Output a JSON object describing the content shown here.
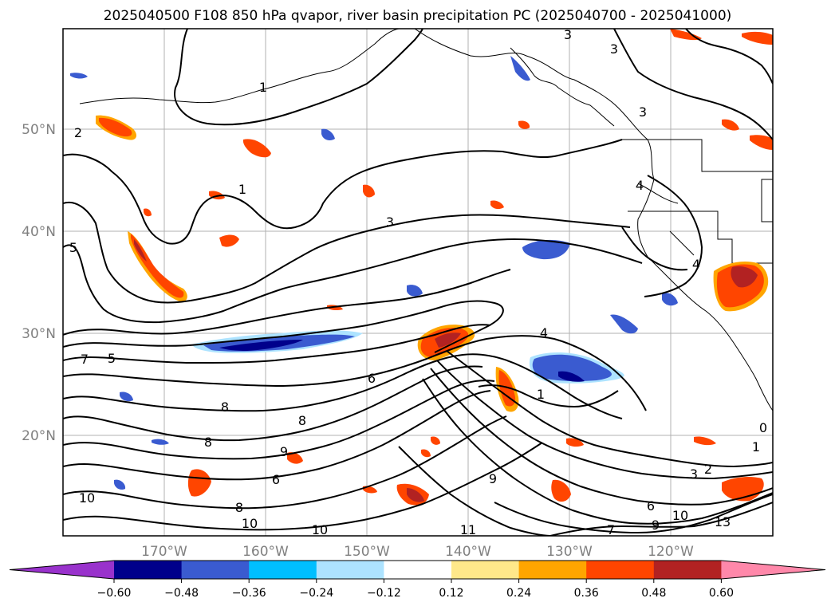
{
  "title": "2025040500 F108 850 hPa qvapor, river basin precipitation PC (2025040700 - 2025041000)",
  "map": {
    "lat_labels": [
      "50°N",
      "40°N",
      "30°N",
      "20°N"
    ],
    "lon_labels": [
      "170°W",
      "160°W",
      "150°W",
      "140°W",
      "130°W",
      "120°W"
    ],
    "contour_labels": [
      {
        "text": "3"
      },
      {
        "text": "3"
      },
      {
        "text": "3"
      },
      {
        "text": "1"
      },
      {
        "text": "2"
      },
      {
        "text": "1"
      },
      {
        "text": "3"
      },
      {
        "text": "5"
      },
      {
        "text": "4"
      },
      {
        "text": "4"
      },
      {
        "text": "7"
      },
      {
        "text": "5"
      },
      {
        "text": "4"
      },
      {
        "text": "1"
      },
      {
        "text": "6"
      },
      {
        "text": "8"
      },
      {
        "text": "8"
      },
      {
        "text": "8"
      },
      {
        "text": "9"
      },
      {
        "text": "6"
      },
      {
        "text": "9"
      },
      {
        "text": "10"
      },
      {
        "text": "8"
      },
      {
        "text": "10"
      },
      {
        "text": "10"
      },
      {
        "text": "11"
      },
      {
        "text": "7"
      },
      {
        "text": "6"
      },
      {
        "text": "9"
      },
      {
        "text": "10"
      },
      {
        "text": "13"
      },
      {
        "text": "1"
      },
      {
        "text": "2"
      },
      {
        "text": "3"
      },
      {
        "text": "0"
      }
    ]
  },
  "colorbar": {
    "tick_labels": [
      "−0.60",
      "−0.48",
      "−0.36",
      "−0.24",
      "−0.12",
      "0.12",
      "0.24",
      "0.36",
      "0.48",
      "0.60"
    ],
    "colors": [
      "#9932cc",
      "#00008b",
      "#3a5bd0",
      "#00bfff",
      "#ade3ff",
      "#ffffff",
      "#ffe88a",
      "#ffa500",
      "#ff4500",
      "#b22222",
      "#ff88aa"
    ]
  }
}
